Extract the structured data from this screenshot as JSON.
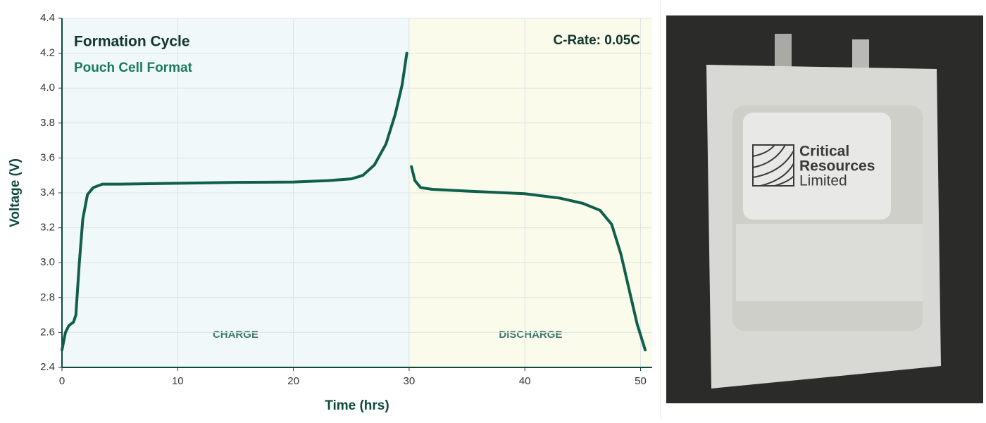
{
  "chart_data": {
    "type": "line",
    "annotations": {
      "title": "Formation Cycle",
      "subtitle": "Pouch Cell Format",
      "rate": "C-Rate: 0.05C"
    },
    "regions": [
      {
        "label": "CHARGE",
        "range": [
          0,
          30
        ],
        "color": "#f0f8fa"
      },
      {
        "label": "DISCHARGE",
        "range": [
          30,
          51
        ],
        "color": "#fafbea"
      }
    ],
    "x_label": "Time (hrs)",
    "y_label": "Voltage (V)",
    "x": [
      0,
      0.3,
      0.6,
      1,
      1.2,
      1.5,
      1.8,
      2.2,
      2.7,
      3.5,
      5,
      10,
      15,
      20,
      23,
      25,
      26,
      27,
      28,
      28.8,
      29.4,
      29.8,
      30,
      30.2,
      30.5,
      31,
      32,
      35,
      40,
      43,
      45,
      46.5,
      47.5,
      48.3,
      49,
      49.7,
      50.4
    ],
    "series": [
      {
        "color": "#0f5f4c",
        "values": [
          2.5,
          2.6,
          2.64,
          2.66,
          2.7,
          3.0,
          3.25,
          3.39,
          3.43,
          3.45,
          3.45,
          3.455,
          3.46,
          3.462,
          3.47,
          3.48,
          3.5,
          3.56,
          3.68,
          3.85,
          4.02,
          4.2,
          null,
          3.55,
          3.47,
          3.43,
          3.42,
          3.41,
          3.395,
          3.37,
          3.34,
          3.3,
          3.22,
          3.05,
          2.85,
          2.65,
          2.5
        ]
      }
    ],
    "xlim": [
      0,
      51
    ],
    "xticks": [
      0,
      10,
      20,
      30,
      40,
      50
    ],
    "ylim": [
      2.4,
      4.4
    ],
    "yticks": [
      2.4,
      2.6,
      2.8,
      {
        "value": 3,
        "label": "3.0"
      },
      3.2,
      3.4,
      3.6,
      3.8,
      {
        "value": 4,
        "label": "4.0"
      },
      4.2,
      4.4
    ],
    "grid": true
  },
  "photo": {
    "label_lines": [
      "Critical",
      "Resources",
      "Limited"
    ]
  }
}
